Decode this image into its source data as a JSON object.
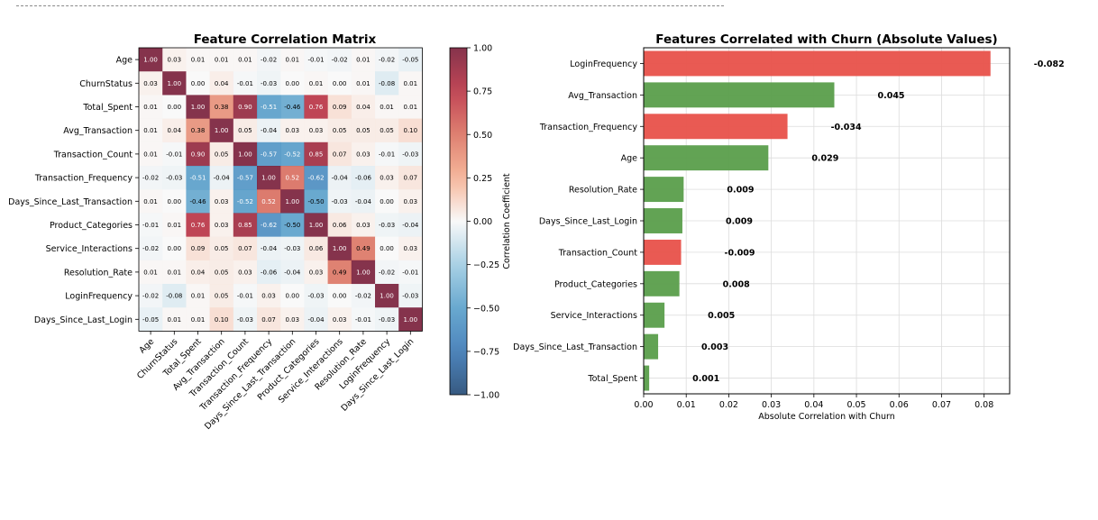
{
  "chart_data": [
    {
      "type": "heatmap",
      "title": "Feature Correlation Matrix",
      "labels": [
        "Age",
        "ChurnStatus",
        "Total_Spent",
        "Avg_Transaction",
        "Transaction_Count",
        "Transaction_Frequency",
        "Days_Since_Last_Transaction",
        "Product_Categories",
        "Service_Interactions",
        "Resolution_Rate",
        "LoginFrequency",
        "Days_Since_Last_Login"
      ],
      "matrix": [
        [
          1.0,
          0.03,
          0.01,
          0.01,
          0.01,
          -0.02,
          0.01,
          -0.01,
          -0.02,
          0.01,
          -0.02,
          -0.05
        ],
        [
          0.03,
          1.0,
          0.0,
          0.04,
          -0.01,
          -0.03,
          0.0,
          0.01,
          0.0,
          0.01,
          -0.08,
          0.01
        ],
        [
          0.01,
          0.0,
          1.0,
          0.38,
          0.9,
          -0.51,
          -0.46,
          0.76,
          0.09,
          0.04,
          0.01,
          0.01
        ],
        [
          0.01,
          0.04,
          0.38,
          1.0,
          0.05,
          -0.04,
          0.03,
          0.03,
          0.05,
          0.05,
          0.05,
          0.1
        ],
        [
          0.01,
          -0.01,
          0.9,
          0.05,
          1.0,
          -0.57,
          -0.52,
          0.85,
          0.07,
          0.03,
          -0.01,
          -0.03
        ],
        [
          -0.02,
          -0.03,
          -0.51,
          -0.04,
          -0.57,
          1.0,
          0.52,
          -0.62,
          -0.04,
          -0.06,
          0.03,
          0.07
        ],
        [
          0.01,
          0.0,
          -0.46,
          0.03,
          -0.52,
          0.52,
          1.0,
          -0.5,
          -0.03,
          -0.04,
          0.0,
          0.03
        ],
        [
          -0.01,
          0.01,
          0.76,
          0.03,
          0.85,
          -0.62,
          -0.5,
          1.0,
          0.06,
          0.03,
          -0.03,
          -0.04
        ],
        [
          -0.02,
          0.0,
          0.09,
          0.05,
          0.07,
          -0.04,
          -0.03,
          0.06,
          1.0,
          0.49,
          -0.0,
          0.03
        ],
        [
          0.01,
          0.01,
          0.04,
          0.05,
          0.03,
          -0.06,
          -0.04,
          0.03,
          0.49,
          1.0,
          -0.02,
          -0.01
        ],
        [
          -0.02,
          -0.08,
          0.01,
          0.05,
          -0.01,
          0.03,
          0.0,
          -0.03,
          -0.0,
          -0.02,
          1.0,
          -0.03
        ],
        [
          -0.05,
          0.01,
          0.01,
          0.1,
          -0.03,
          0.07,
          0.03,
          -0.04,
          0.03,
          -0.01,
          -0.03,
          1.0
        ]
      ],
      "colorbar": {
        "label": "Correlation Coefficient",
        "range": [
          -1,
          1
        ],
        "ticks": [
          "1.00",
          "0.75",
          "0.50",
          "0.25",
          "0.00",
          "−0.25",
          "−0.50",
          "−0.75",
          "−1.00"
        ],
        "colormap": "RdBu_r"
      }
    },
    {
      "type": "bar",
      "orientation": "horizontal",
      "title": "Features Correlated with Churn (Absolute Values)",
      "xlabel": "Absolute Correlation with Churn",
      "xlim": [
        0,
        0.086
      ],
      "xticks": [
        "0.00",
        "0.01",
        "0.02",
        "0.03",
        "0.04",
        "0.05",
        "0.06",
        "0.07",
        "0.08"
      ],
      "grid": true,
      "categories": [
        "LoginFrequency",
        "Avg_Transaction",
        "Transaction_Frequency",
        "Age",
        "Resolution_Rate",
        "Days_Since_Last_Login",
        "Transaction_Count",
        "Product_Categories",
        "Service_Interactions",
        "Days_Since_Last_Transaction",
        "Total_Spent"
      ],
      "values": [
        0.0815,
        0.0448,
        0.0338,
        0.0293,
        0.0094,
        0.0091,
        0.0088,
        0.0084,
        0.0049,
        0.0034,
        0.0013
      ],
      "labels": [
        "-0.082",
        "0.045",
        "-0.034",
        "0.029",
        "0.009",
        "0.009",
        "-0.009",
        "0.008",
        "0.005",
        "0.003",
        "0.001"
      ],
      "colors": [
        "#e8514a",
        "#5a9e4b",
        "#e8514a",
        "#5a9e4b",
        "#5a9e4b",
        "#5a9e4b",
        "#e8514a",
        "#5a9e4b",
        "#5a9e4b",
        "#5a9e4b",
        "#5a9e4b"
      ]
    }
  ]
}
